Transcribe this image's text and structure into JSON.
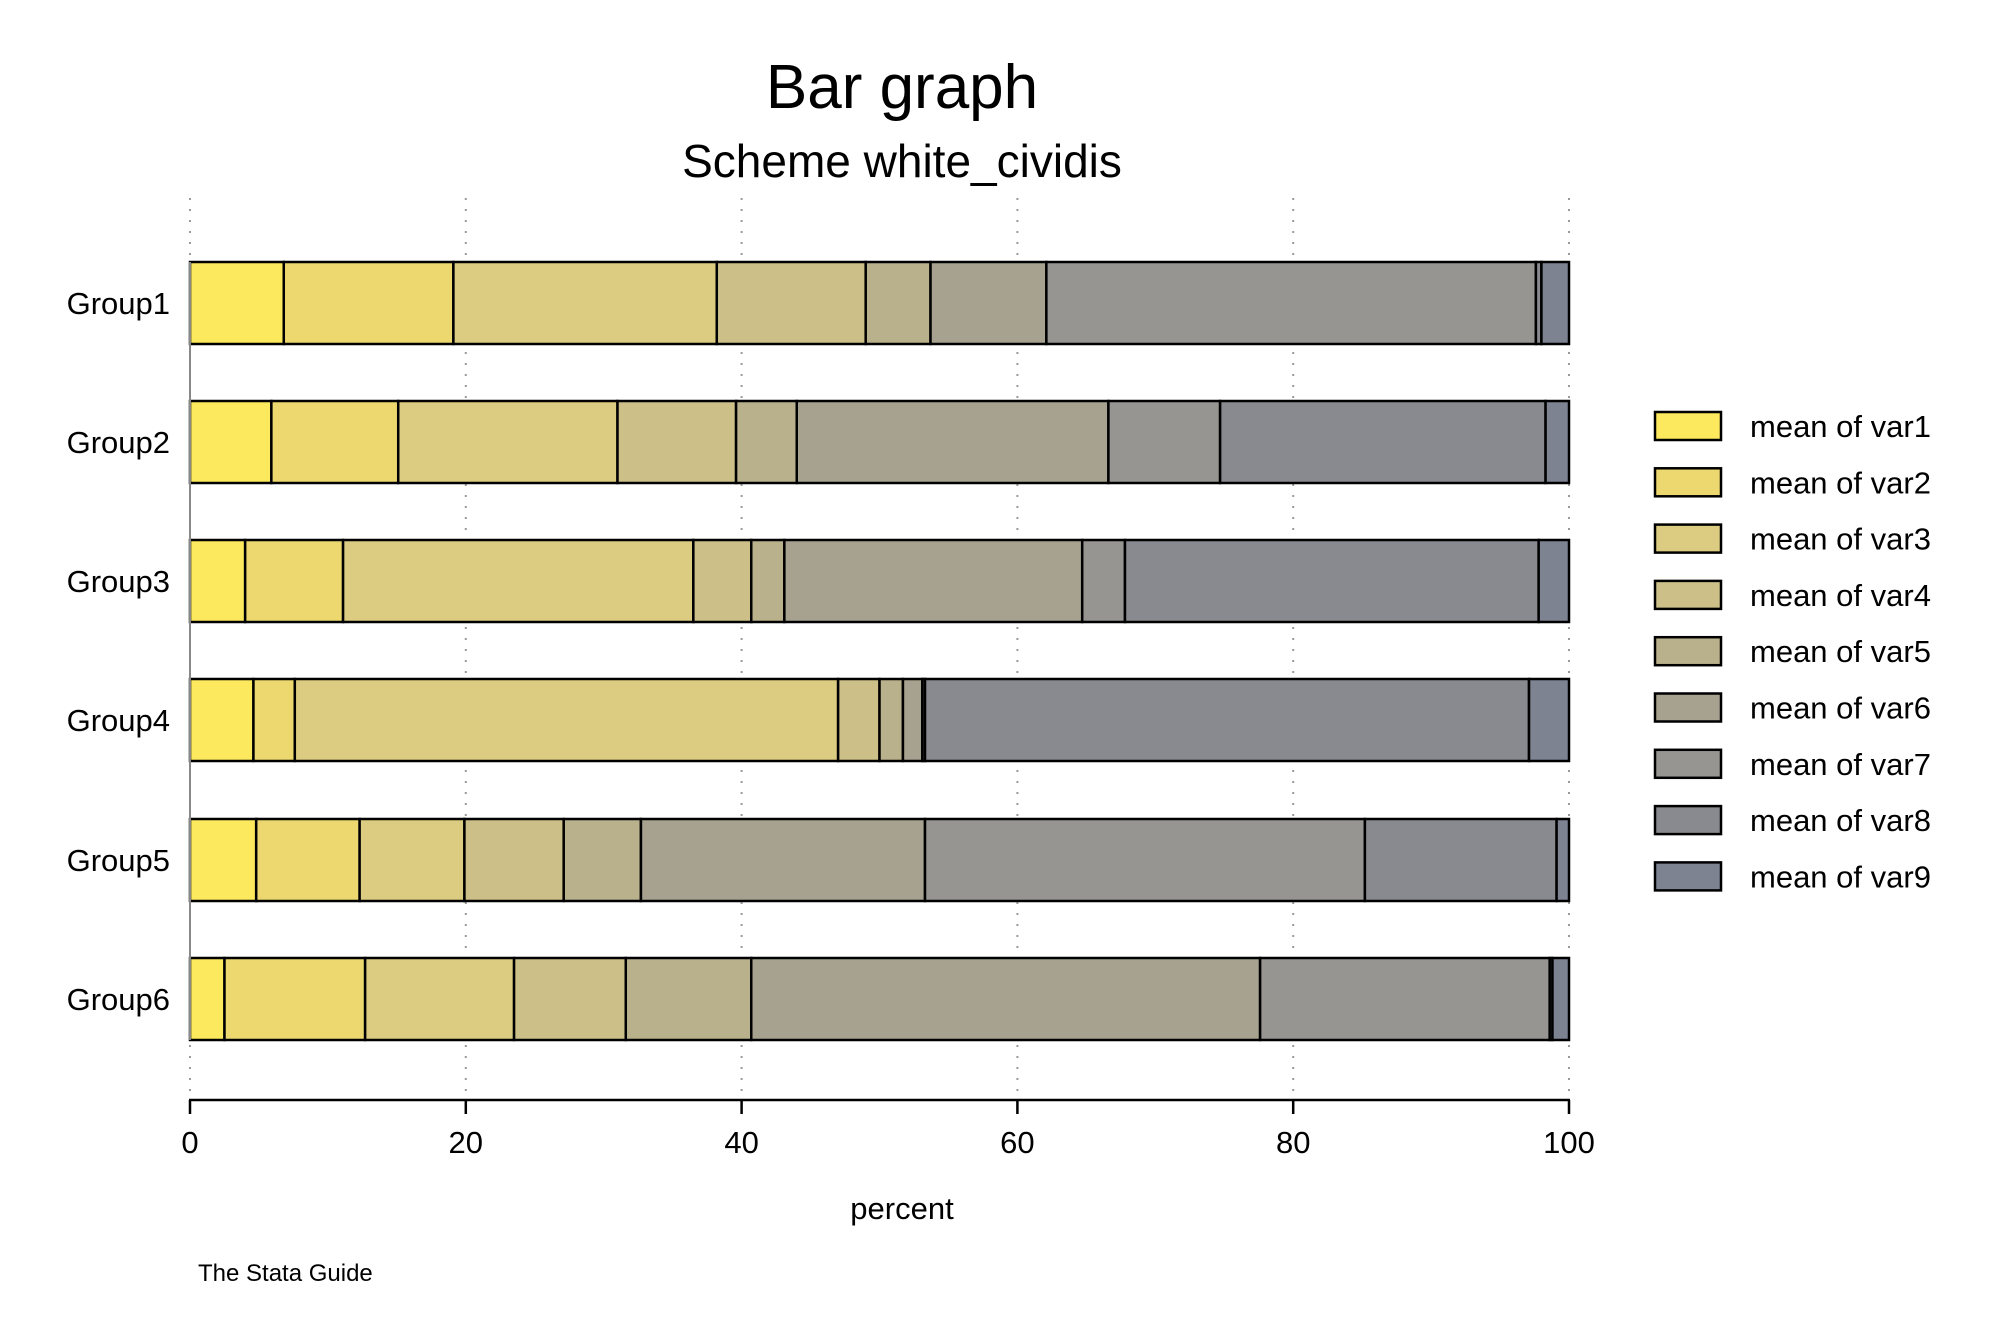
{
  "chart_data": {
    "type": "bar",
    "orientation": "horizontal",
    "stacked": true,
    "title": "Bar graph",
    "subtitle": "Scheme white_cividis",
    "xlabel": "percent",
    "ylabel": "",
    "note": "The Stata Guide",
    "xlim": [
      0,
      100
    ],
    "xticks": [
      0,
      20,
      40,
      60,
      80,
      100
    ],
    "grid": true,
    "legend_position": "right",
    "categories": [
      "Group1",
      "Group2",
      "Group3",
      "Group4",
      "Group5",
      "Group6"
    ],
    "series": [
      {
        "name": "mean of var1",
        "color": "#FDE95E",
        "values": [
          6.8,
          5.9,
          4.0,
          4.6,
          4.8,
          2.5
        ]
      },
      {
        "name": "mean of var2",
        "color": "#EDD870",
        "values": [
          12.3,
          9.2,
          7.1,
          3.0,
          7.5,
          10.2
        ]
      },
      {
        "name": "mean of var3",
        "color": "#DCCC81",
        "values": [
          19.1,
          15.9,
          25.4,
          39.4,
          7.6,
          10.8
        ]
      },
      {
        "name": "mean of var4",
        "color": "#CCBF88",
        "values": [
          10.8,
          8.6,
          4.2,
          3.0,
          7.2,
          8.1
        ]
      },
      {
        "name": "mean of var5",
        "color": "#B9B18B",
        "values": [
          4.7,
          4.4,
          2.4,
          1.7,
          5.6,
          9.1
        ]
      },
      {
        "name": "mean of var6",
        "color": "#A6A28F",
        "values": [
          8.4,
          22.6,
          21.6,
          1.4,
          20.6,
          36.9
        ]
      },
      {
        "name": "mean of var7",
        "color": "#979592",
        "values": [
          35.5,
          8.1,
          3.1,
          0.2,
          31.9,
          21.0
        ]
      },
      {
        "name": "mean of var8",
        "color": "#888A8F",
        "values": [
          0.4,
          23.6,
          30.0,
          43.8,
          13.9,
          0.2
        ]
      },
      {
        "name": "mean of var9",
        "color": "#7E8392",
        "values": [
          2.0,
          1.7,
          2.2,
          2.9,
          0.9,
          1.2
        ]
      }
    ]
  }
}
